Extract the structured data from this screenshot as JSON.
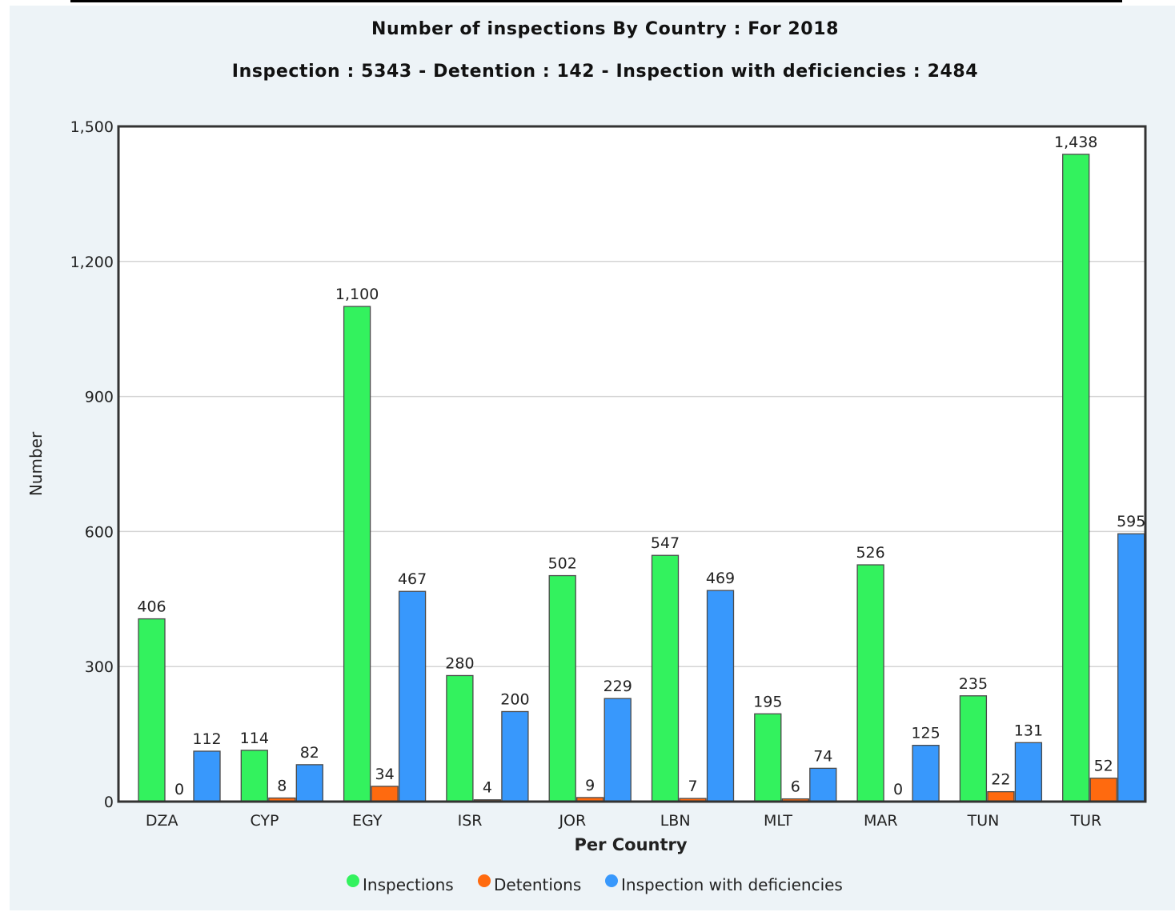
{
  "chart_data": {
    "type": "bar",
    "title": "Number of inspections By Country : For 2018",
    "subtitle": "Inspection : 5343 - Detention : 142 - Inspection with deficiencies : 2484",
    "xlabel": "Per Country",
    "ylabel": "Number",
    "ylim": [
      0,
      1500
    ],
    "yticks": [
      "0",
      "300",
      "600",
      "900",
      "1,200",
      "1,500"
    ],
    "ytick_values": [
      0,
      300,
      600,
      900,
      1200,
      1500
    ],
    "categories": [
      "DZA",
      "CYP",
      "EGY",
      "ISR",
      "JOR",
      "LBN",
      "MLT",
      "MAR",
      "TUN",
      "TUR"
    ],
    "series": [
      {
        "name": "Inspections",
        "color": "#33f25e",
        "values": [
          406,
          114,
          1100,
          280,
          502,
          547,
          195,
          526,
          235,
          1438
        ],
        "labels": [
          "406",
          "114",
          "1,100",
          "280",
          "502",
          "547",
          "195",
          "526",
          "235",
          "1,438"
        ]
      },
      {
        "name": "Detentions",
        "color": "#ff6a0f",
        "values": [
          0,
          8,
          34,
          4,
          9,
          7,
          6,
          0,
          22,
          52
        ],
        "labels": [
          "0",
          "8",
          "34",
          "4",
          "9",
          "7",
          "6",
          "0",
          "22",
          "52"
        ]
      },
      {
        "name": "Inspection with deficiencies",
        "color": "#3898fc",
        "values": [
          112,
          82,
          467,
          200,
          229,
          469,
          74,
          125,
          131,
          595
        ],
        "labels": [
          "112",
          "82",
          "467",
          "200",
          "229",
          "469",
          "74",
          "125",
          "131",
          "595"
        ]
      }
    ],
    "grid": true,
    "legend": "bottom-center"
  }
}
